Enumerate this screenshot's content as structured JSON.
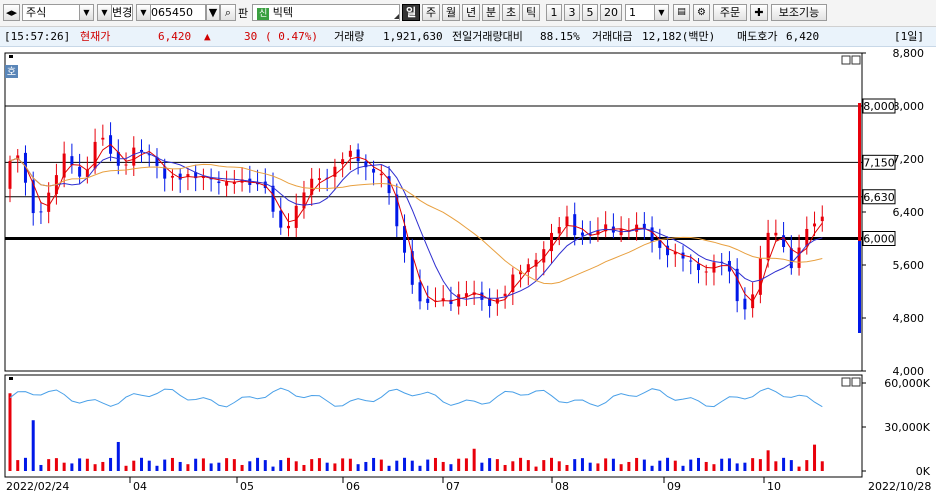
{
  "toolbar": {
    "market_type": "주식",
    "change_label": "변경",
    "stock_code": "065450",
    "pan_label": "판",
    "new_badge": "신",
    "stock_name": "빅텍",
    "periods": [
      "일",
      "주",
      "월",
      "년",
      "분",
      "초",
      "틱"
    ],
    "active_period": "일",
    "intervals": [
      "1",
      "3",
      "5",
      "20"
    ],
    "interval_value": "1",
    "order_label": "주문",
    "aux_label": "보조기능"
  },
  "status": {
    "time": "[15:57:26]",
    "price_label": "현재가",
    "price": "6,420",
    "arrow": "▲",
    "change": "30",
    "change_pct": "( 0.47%)",
    "volume_label": "거래량",
    "volume": "1,921,630",
    "prev_ratio_label": "전일거래량대비",
    "prev_ratio": "88.15%",
    "amount_label": "거래대금",
    "amount": "12,182(백만)",
    "ask_label": "매도호가",
    "ask": "6,420",
    "period_badge": "[1일]"
  },
  "chart_labels": {
    "corner_badge": "호",
    "start_date": "2022/02/24",
    "end_date": "2022/10/28",
    "months": [
      "04",
      "05",
      "06",
      "07",
      "08",
      "09",
      "10"
    ]
  },
  "chart_data": [
    {
      "type": "candlestick",
      "y_ticks": [
        "8,800",
        "8,000",
        "7,200",
        "6,400",
        "5,600",
        "4,800",
        "4,000"
      ],
      "ylim": [
        4000,
        8800
      ],
      "hlines": [
        {
          "label": "8,000",
          "value": 8000
        },
        {
          "label": "7,150",
          "value": 7150
        },
        {
          "label": "6,630",
          "value": 6630
        },
        {
          "label": "6,000",
          "value": 6000
        }
      ],
      "last_close": 6420
    },
    {
      "type": "bar",
      "y_ticks": [
        "60,000K",
        "30,000K",
        "0K"
      ],
      "ylim": [
        0,
        60000
      ]
    }
  ],
  "colors": {
    "up": "#e8000b",
    "down": "#0018e8",
    "ma5": "#e00000",
    "ma20": "#3030d0",
    "ma60": "#e8a040"
  }
}
